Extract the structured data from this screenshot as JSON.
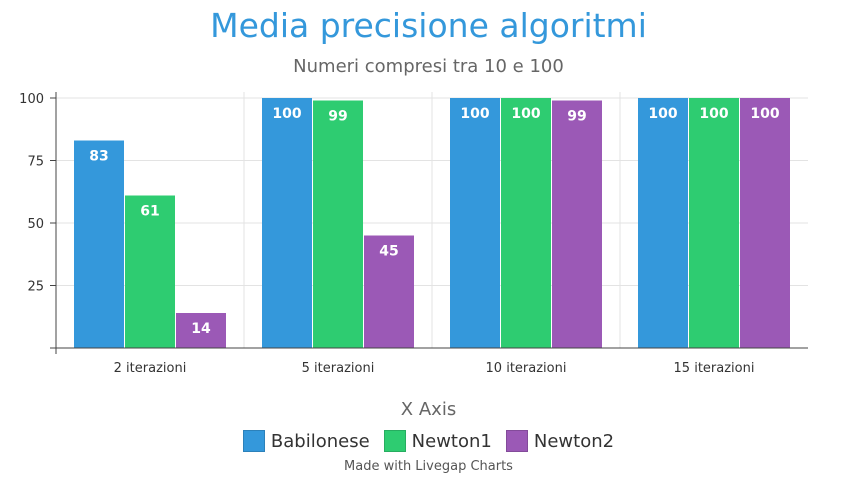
{
  "chart_data": {
    "type": "bar",
    "title": "Media precisione algoritmi",
    "subtitle": "Numeri compresi tra 10 e 100",
    "xlabel": "X Axis",
    "ylabel": "",
    "categories": [
      "2 iterazioni",
      "5 iterazioni",
      "10 iterazioni",
      "15 iterazioni"
    ],
    "series": [
      {
        "name": "Babilonese",
        "color": "#3498db",
        "values": [
          83,
          100,
          100,
          100
        ]
      },
      {
        "name": "Newton1",
        "color": "#2ecc71",
        "values": [
          61,
          99,
          100,
          100
        ]
      },
      {
        "name": "Newton2",
        "color": "#9b59b6",
        "values": [
          14,
          45,
          99,
          100
        ]
      }
    ],
    "ylim": [
      0,
      100
    ],
    "yticks": [
      25,
      50,
      75,
      100
    ],
    "grid": true,
    "data_labels": true,
    "legend_position": "bottom"
  },
  "credit": "Made with Livegap Charts"
}
